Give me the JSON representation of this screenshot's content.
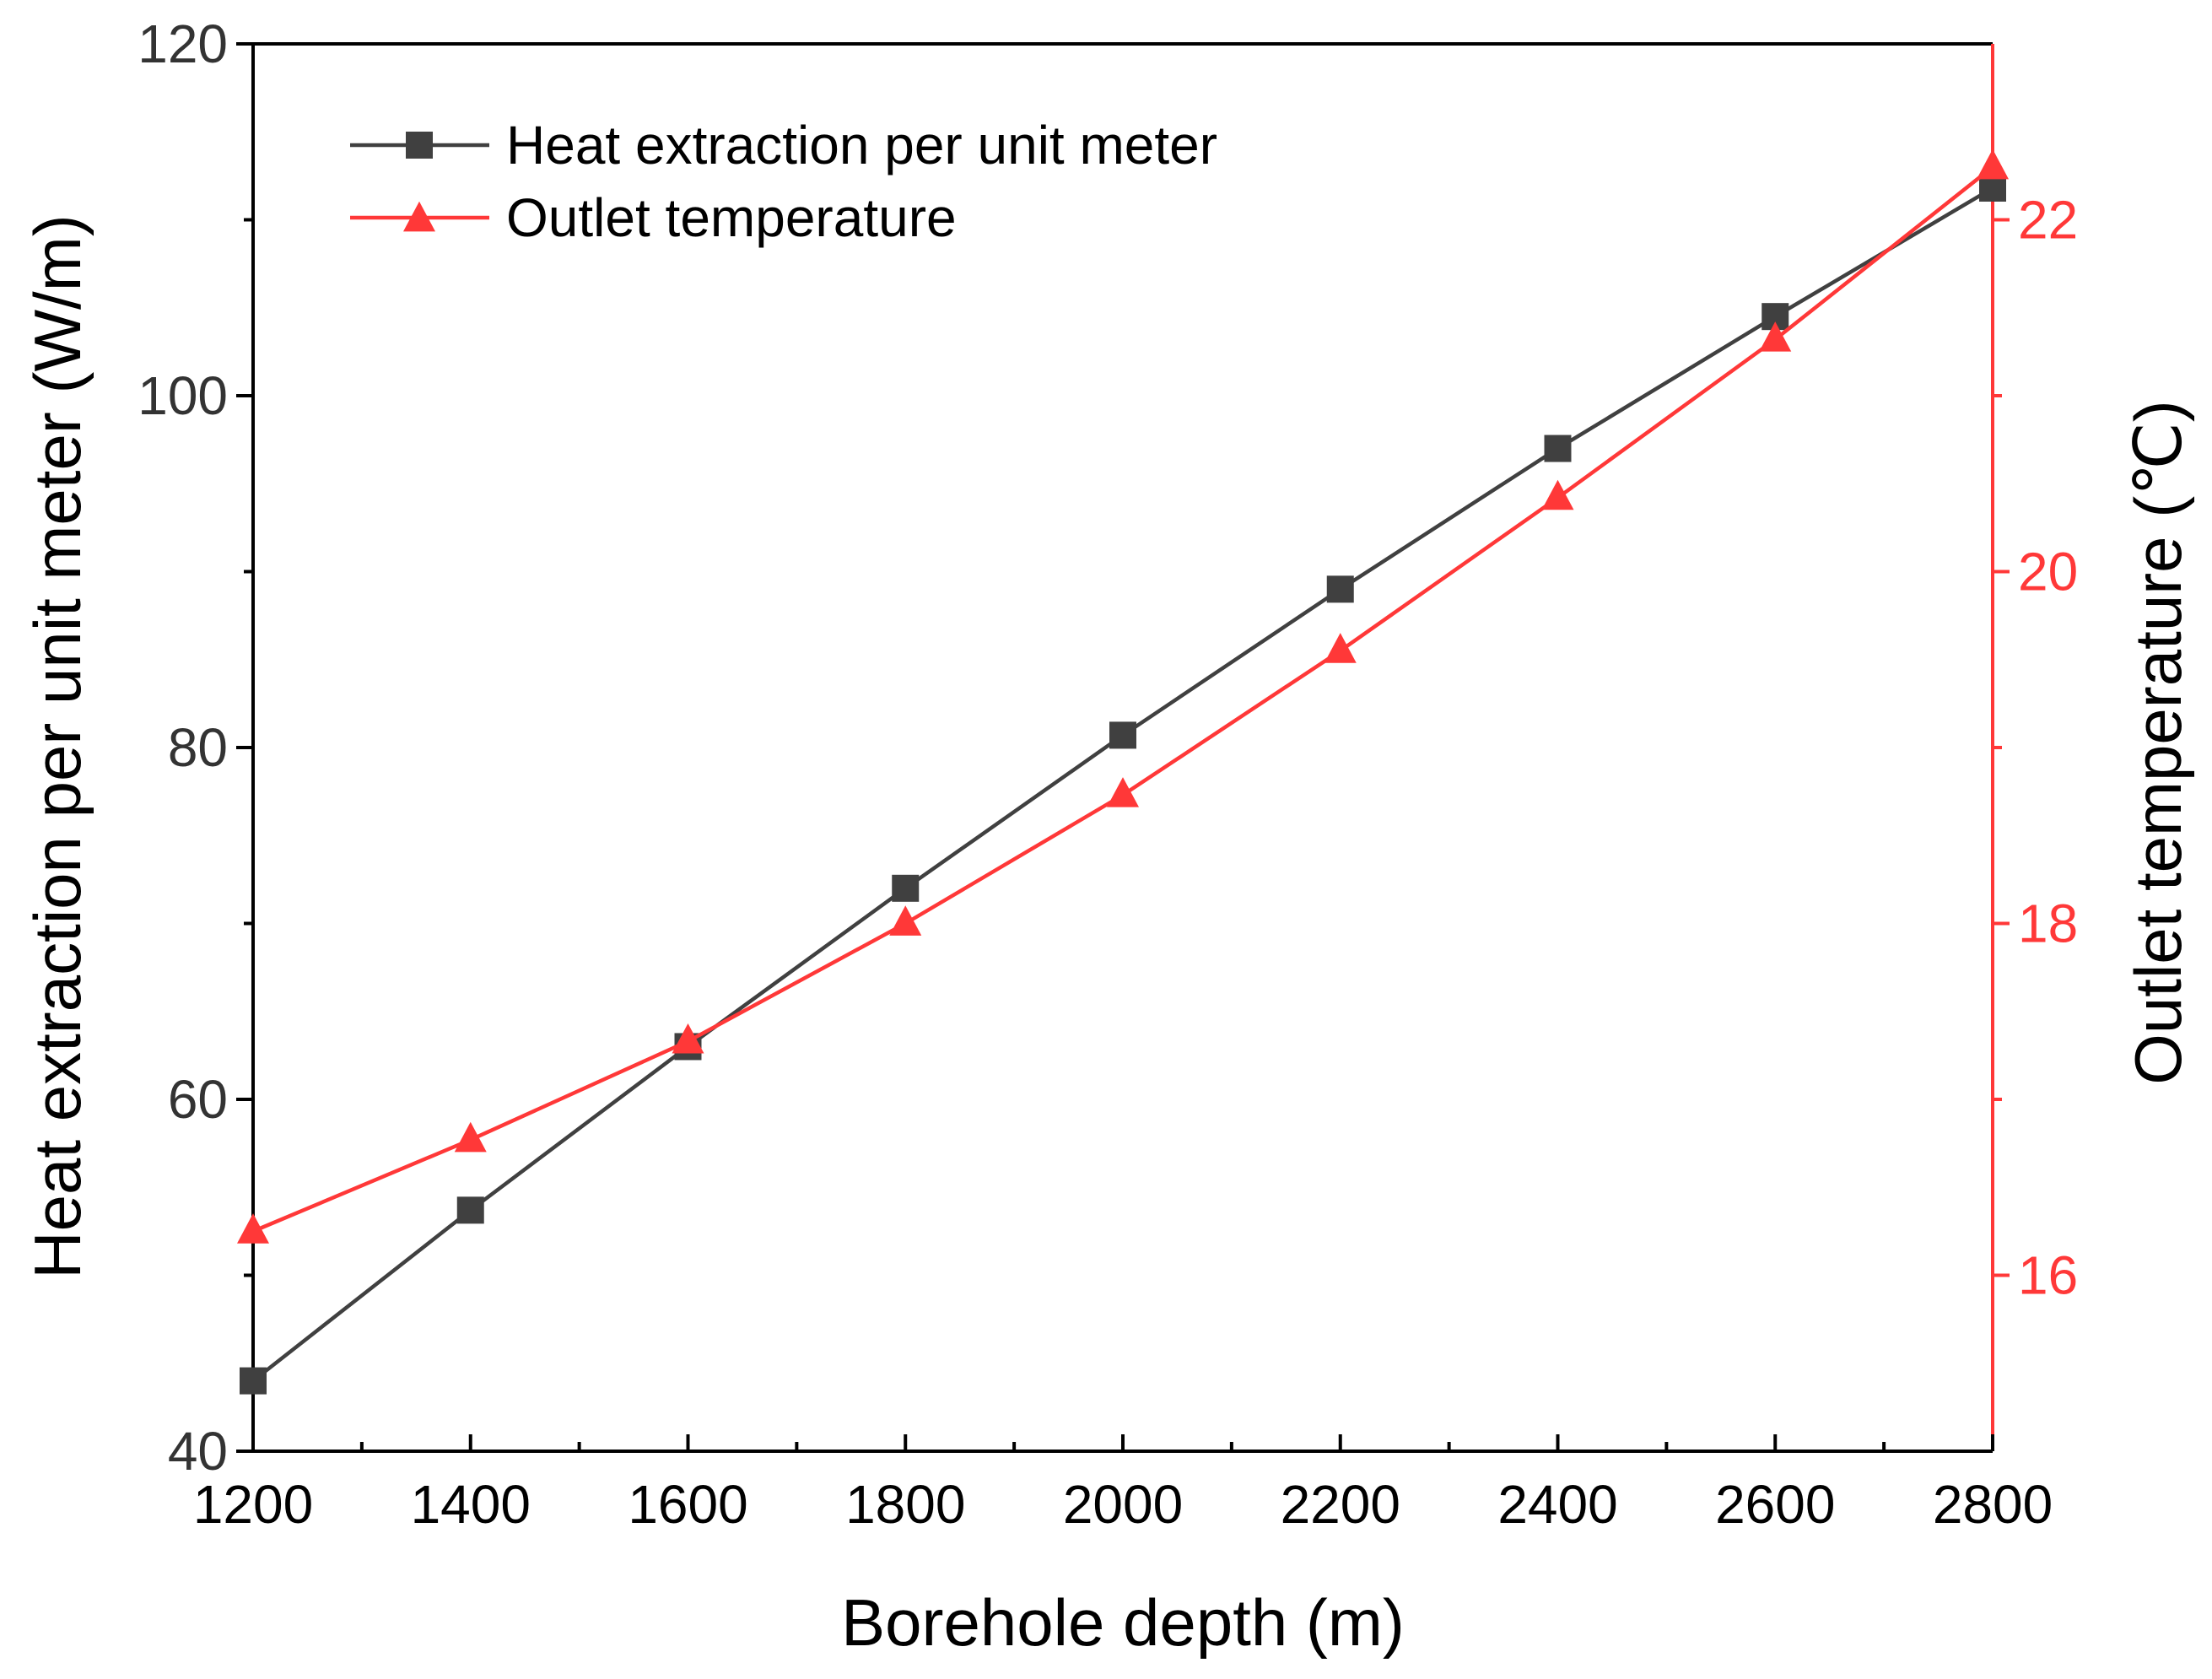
{
  "chart_data": {
    "type": "line",
    "title": "",
    "xlabel": "Borehole depth (m)",
    "ylabel_left": "Heat extraction per unit meter (W/m)",
    "ylabel_right": "Outlet temperature (℃)",
    "x": [
      1200,
      1400,
      1600,
      1800,
      2000,
      2200,
      2400,
      2600,
      2800
    ],
    "xlim": [
      1200,
      2800
    ],
    "ylim_left": [
      40,
      120
    ],
    "ylim_right": [
      15,
      23
    ],
    "xticks": [
      1200,
      1400,
      1600,
      1800,
      2000,
      2200,
      2400,
      2600,
      2800
    ],
    "yticks_left": [
      40,
      60,
      80,
      100,
      120
    ],
    "yticks_right": [
      16,
      18,
      20,
      22
    ],
    "legend_position": "top-left",
    "grid": false,
    "series": [
      {
        "name": "Heat extraction per unit meter",
        "axis": "left",
        "marker": "square",
        "color": "#404040",
        "values": [
          44.0,
          53.7,
          63.0,
          72.0,
          80.7,
          89.0,
          97.0,
          104.5,
          111.8
        ]
      },
      {
        "name": "Outlet temperature",
        "axis": "right",
        "marker": "triangle",
        "color": "#ff3838",
        "values": [
          16.25,
          16.77,
          17.33,
          18.0,
          18.73,
          19.55,
          20.42,
          21.32,
          22.3
        ]
      }
    ],
    "colors": {
      "left_axis": "#000000",
      "right_axis": "#ff3838",
      "tick_text_left": "#333333"
    }
  }
}
